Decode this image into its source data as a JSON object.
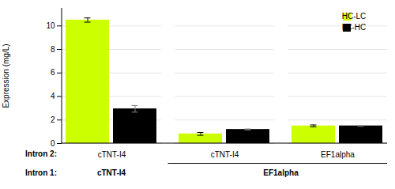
{
  "chart_data": {
    "type": "bar",
    "y_label": "Expression (mg/L)",
    "categories": [
      "cTNT-I4",
      "cTNT-I4",
      "EF1alpha"
    ],
    "series": [
      {
        "name": "HC-LC",
        "color": "#CCFF00",
        "values": [
          10.5,
          0.82,
          1.5
        ],
        "errors": [
          0.18,
          0.12,
          0.08
        ]
      },
      {
        "name": "LC-HC",
        "color": "#000000",
        "values": [
          2.95,
          1.2,
          1.5
        ],
        "errors": [
          0.28,
          0.04,
          0.04
        ]
      }
    ],
    "annotations": [
      {
        "text": "Intron 2:"
      },
      {
        "text": "Intron 1:"
      },
      {
        "text": "cTNT-I4",
        "categories": [
          0
        ]
      },
      {
        "text": "EF1alpha",
        "categories": [
          1,
          2
        ]
      }
    ],
    "ylim": [
      0,
      11.5
    ],
    "yticks": [
      0,
      2,
      4,
      6,
      8,
      10
    ],
    "grid": true,
    "legend": "upper right"
  }
}
